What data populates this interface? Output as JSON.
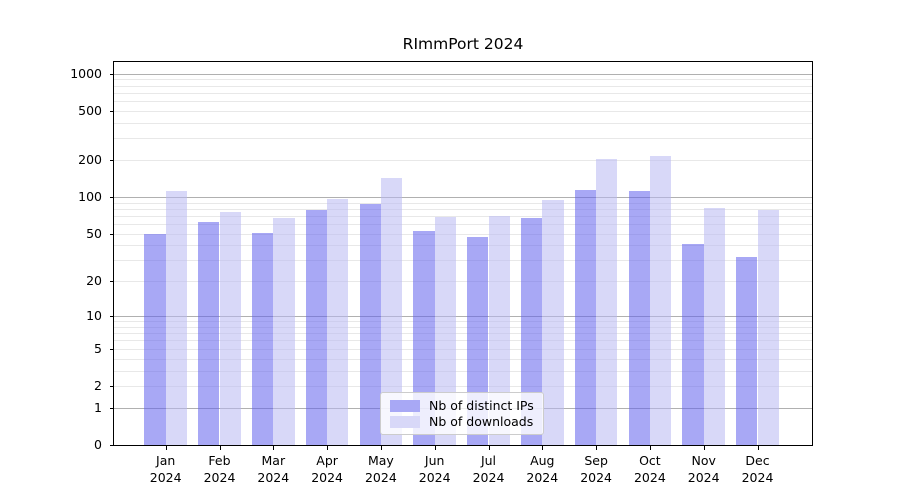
{
  "chart_data": {
    "type": "bar",
    "title": "RImmPort 2024",
    "categories": [
      "Jan 2024",
      "Feb 2024",
      "Mar 2024",
      "Apr 2024",
      "May 2024",
      "Jun 2024",
      "Jul 2024",
      "Aug 2024",
      "Sep 2024",
      "Oct 2024",
      "Nov 2024",
      "Dec 2024"
    ],
    "series": [
      {
        "name": "Nb of distinct IPs",
        "color": "#a8a8f5",
        "values": [
          50,
          63,
          51,
          78,
          88,
          53,
          47,
          67,
          114,
          112,
          41,
          32
        ]
      },
      {
        "name": "Nb of downloads",
        "color": "#d8d8f8",
        "values": [
          112,
          75,
          67,
          97,
          144,
          68,
          70,
          95,
          204,
          215,
          81,
          78
        ]
      }
    ],
    "xlabel": "",
    "ylabel": "",
    "yscale": "log10(1+y)",
    "ylim": [
      0,
      1245
    ],
    "yticks": {
      "values": [
        0,
        1,
        2,
        5,
        10,
        20,
        50,
        100,
        200,
        500,
        1000
      ],
      "labels": [
        "0",
        "1",
        "2",
        "5",
        "10",
        "20",
        "50",
        "100",
        "200",
        "500",
        "1000"
      ]
    },
    "grid": "on",
    "legend_position": "lower center"
  }
}
